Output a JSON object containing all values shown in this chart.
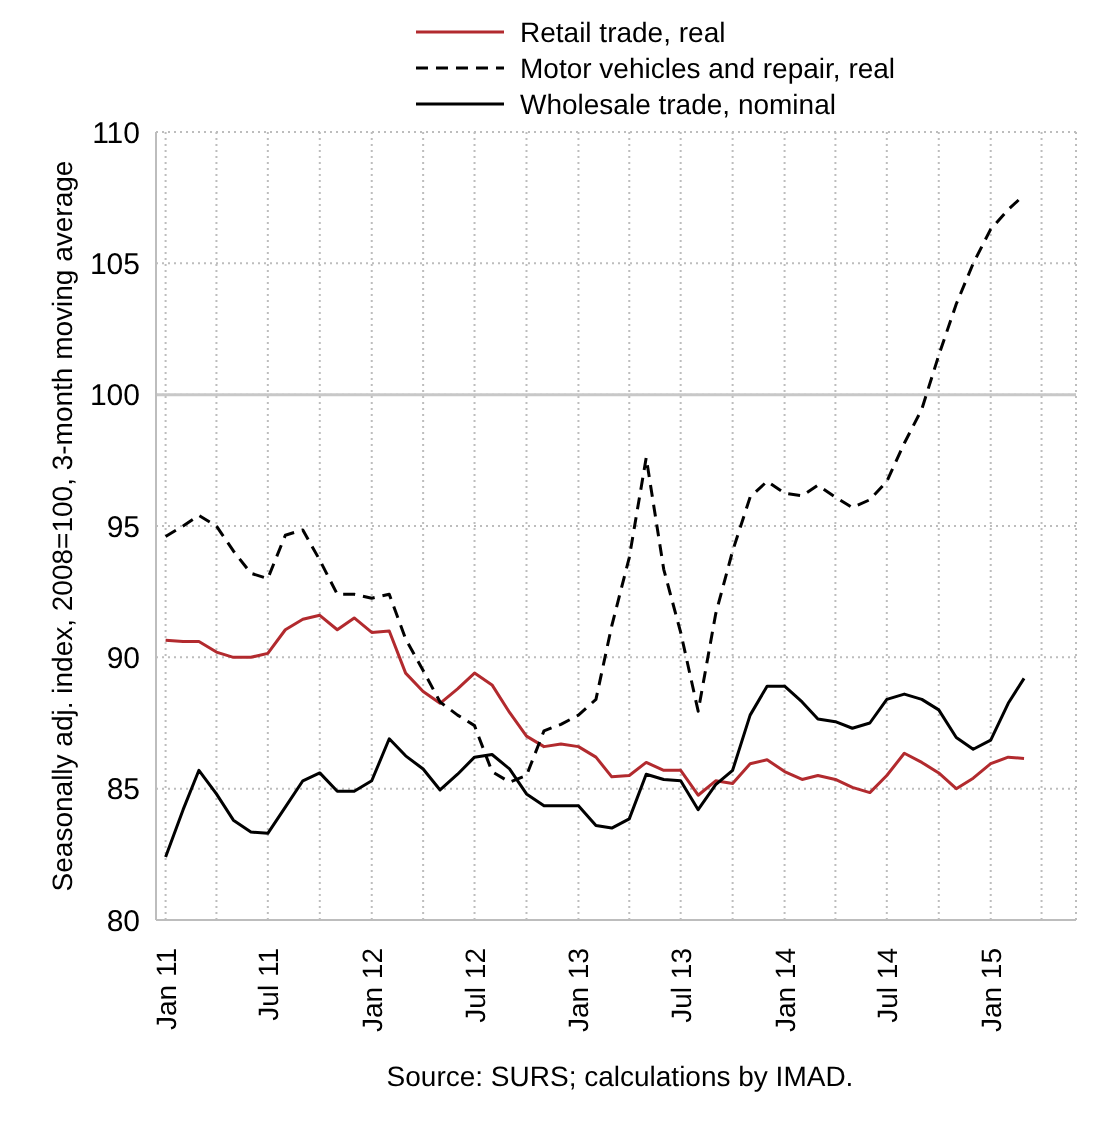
{
  "chart_data": {
    "type": "line",
    "ylabel": "Seasonally adj. index, 2008=100, 3-month moving average",
    "annotations": [
      "Source: SURS; calculations by IMAD."
    ],
    "x": [
      "2011-01",
      "2011-02",
      "2011-03",
      "2011-04",
      "2011-05",
      "2011-06",
      "2011-07",
      "2011-08",
      "2011-09",
      "2011-10",
      "2011-11",
      "2011-12",
      "2012-01",
      "2012-02",
      "2012-03",
      "2012-04",
      "2012-05",
      "2012-06",
      "2012-07",
      "2012-08",
      "2012-09",
      "2012-10",
      "2012-11",
      "2012-12",
      "2013-01",
      "2013-02",
      "2013-03",
      "2013-04",
      "2013-05",
      "2013-06",
      "2013-07",
      "2013-08",
      "2013-09",
      "2013-10",
      "2013-11",
      "2013-12",
      "2014-01",
      "2014-02",
      "2014-03",
      "2014-04",
      "2014-05",
      "2014-06",
      "2014-07",
      "2014-08",
      "2014-09",
      "2014-10",
      "2014-11",
      "2014-12",
      "2015-01",
      "2015-02",
      "2015-03"
    ],
    "series": [
      {
        "name": "Retail trade, real",
        "color": "#b22a2e",
        "line_style": "solid",
        "values": [
          90.65,
          90.6,
          90.6,
          90.2,
          90.0,
          90.0,
          90.15,
          91.05,
          91.45,
          91.6,
          91.05,
          91.5,
          90.95,
          91.0,
          89.4,
          88.7,
          88.25,
          88.8,
          89.4,
          88.95,
          87.9,
          87.0,
          86.6,
          86.7,
          86.6,
          86.2,
          85.45,
          85.5,
          86.0,
          85.7,
          85.7,
          84.75,
          85.3,
          85.2,
          85.95,
          86.1,
          85.65,
          85.35,
          85.5,
          85.35,
          85.05,
          84.85,
          85.5,
          86.35,
          86.0,
          85.6,
          85.0,
          85.4,
          85.95,
          86.2,
          86.15
        ]
      },
      {
        "name": "Motor vehicles and repair, real",
        "color": "#000000",
        "line_style": "dashed",
        "values": [
          94.6,
          95.0,
          95.4,
          95.0,
          94.05,
          93.2,
          93.0,
          94.65,
          94.85,
          93.7,
          92.4,
          92.4,
          92.25,
          92.4,
          90.7,
          89.5,
          88.3,
          87.8,
          87.4,
          85.65,
          85.25,
          85.5,
          87.2,
          87.45,
          87.8,
          88.4,
          91.2,
          93.8,
          97.6,
          93.35,
          90.95,
          87.95,
          91.65,
          94.05,
          96.1,
          96.7,
          96.25,
          96.15,
          96.55,
          96.1,
          95.7,
          96.0,
          96.7,
          98.15,
          99.45,
          101.5,
          103.45,
          105.0,
          106.3,
          107.05,
          107.6
        ]
      },
      {
        "name": "Wholesale trade, nominal",
        "color": "#000000",
        "line_style": "solid",
        "values": [
          82.4,
          84.2,
          85.7,
          84.8,
          83.8,
          83.35,
          83.3,
          84.3,
          85.3,
          85.6,
          84.9,
          84.9,
          85.3,
          86.9,
          86.25,
          85.75,
          84.95,
          85.55,
          86.2,
          86.3,
          85.75,
          84.8,
          84.35,
          84.35,
          84.35,
          83.6,
          83.5,
          83.85,
          85.55,
          85.35,
          85.3,
          84.2,
          85.15,
          85.7,
          87.8,
          88.9,
          88.9,
          88.3,
          87.65,
          87.55,
          87.3,
          87.5,
          88.4,
          88.6,
          88.4,
          88.0,
          86.95,
          86.5,
          86.85,
          88.25,
          89.2
        ]
      }
    ],
    "xlim": [
      "2010-12-15",
      "2015-06-01"
    ],
    "xticks": [
      {
        "value": "2011-01",
        "label": "Jan 11"
      },
      {
        "value": "2011-04",
        "label": null
      },
      {
        "value": "2011-07",
        "label": "Jul 11"
      },
      {
        "value": "2011-10",
        "label": null
      },
      {
        "value": "2012-01",
        "label": "Jan 12"
      },
      {
        "value": "2012-04",
        "label": null
      },
      {
        "value": "2012-07",
        "label": "Jul 12"
      },
      {
        "value": "2012-10",
        "label": null
      },
      {
        "value": "2013-01",
        "label": "Jan 13"
      },
      {
        "value": "2013-04",
        "label": null
      },
      {
        "value": "2013-07",
        "label": "Jul 13"
      },
      {
        "value": "2013-10",
        "label": null
      },
      {
        "value": "2014-01",
        "label": "Jan 14"
      },
      {
        "value": "2014-04",
        "label": null
      },
      {
        "value": "2014-07",
        "label": "Jul 14"
      },
      {
        "value": "2014-10",
        "label": null
      },
      {
        "value": "2015-01",
        "label": "Jan 15"
      },
      {
        "value": "2015-04",
        "label": null
      }
    ],
    "ylim": [
      80,
      110
    ],
    "yticks": [
      80,
      85,
      90,
      95,
      100,
      105,
      110
    ],
    "ref_lines": [
      {
        "axis": "y",
        "value": 100,
        "color": "#c8c8c8"
      }
    ],
    "grid": true,
    "legend": "top",
    "marker": "none"
  }
}
